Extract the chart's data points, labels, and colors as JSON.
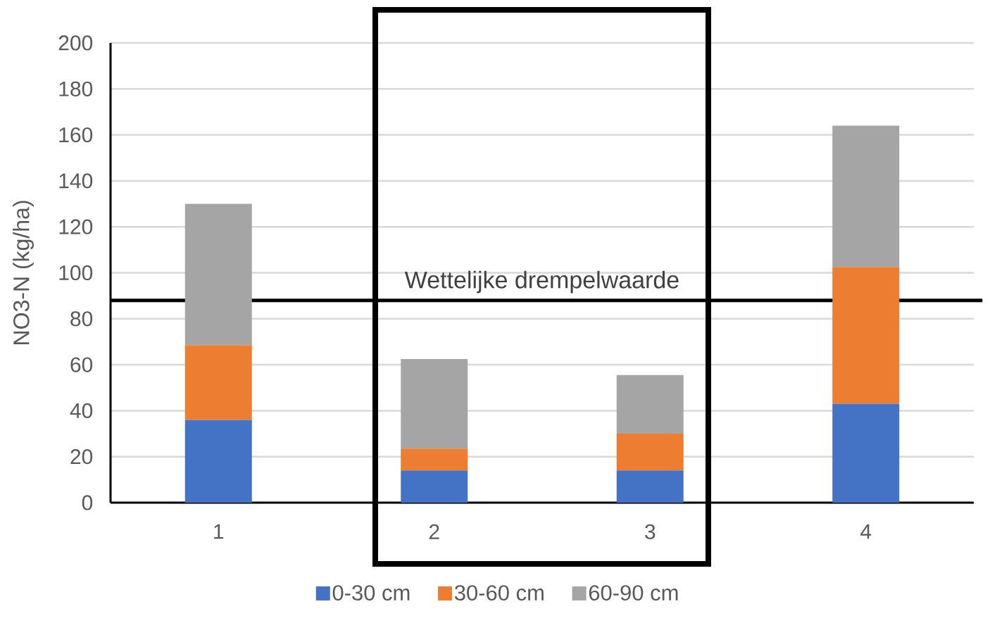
{
  "chart_data": {
    "type": "bar",
    "stacked": true,
    "categories": [
      "1",
      "2",
      "3",
      "4"
    ],
    "series": [
      {
        "name": "0-30 cm",
        "color": "#4472c4",
        "values": [
          36,
          14,
          14,
          43
        ]
      },
      {
        "name": "30-60 cm",
        "color": "#ed7d31",
        "values": [
          32.5,
          9.5,
          16,
          59.5
        ]
      },
      {
        "name": "60-90 cm",
        "color": "#a5a5a5",
        "values": [
          61.5,
          39,
          25.5,
          61.5
        ]
      }
    ],
    "ylabel": "NO3-N (kg/ha)",
    "ylim": [
      0,
      200
    ],
    "yticks": [
      0,
      20,
      40,
      60,
      80,
      100,
      120,
      140,
      160,
      180,
      200
    ],
    "grid": "y",
    "legend": "bottom",
    "ref_lines": [
      {
        "axis": "y",
        "value": 88,
        "label": "Wettelijke drempelwaarde",
        "color": "#000000"
      }
    ]
  }
}
